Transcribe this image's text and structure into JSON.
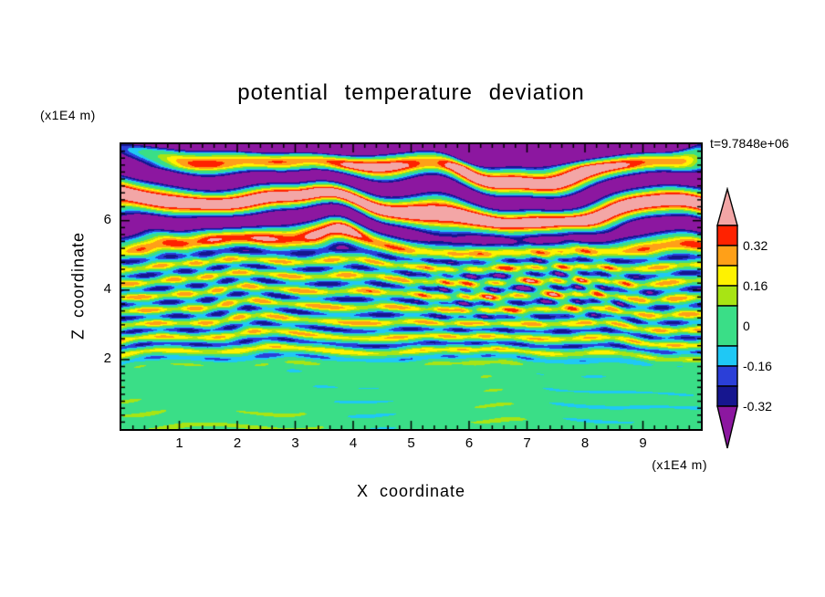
{
  "title": "potential temperature deviation",
  "time_label": "t=9.7848e+06",
  "x_axis": {
    "label": "X coordinate",
    "units": "(x1E4 m)",
    "tick_labels": [
      "1",
      "2",
      "3",
      "4",
      "5",
      "6",
      "7",
      "8",
      "9"
    ]
  },
  "z_axis": {
    "label": "Z coordinate",
    "units": "(x1E4 m)",
    "tick_labels": [
      "2",
      "4",
      "6"
    ]
  },
  "colorbar": {
    "tick_labels": [
      "0.32",
      "0.16",
      "0",
      "-0.16",
      "-0.32"
    ]
  },
  "chart_data": {
    "type": "heatmap",
    "title": "potential temperature deviation",
    "xlabel": "X coordinate",
    "ylabel": "Z coordinate",
    "x_units_label": "(x1E4 m)",
    "y_units_label": "(x1E4 m)",
    "time_annotation": "t=9.7848e+06",
    "xlim": [
      0,
      10
    ],
    "ylim": [
      0,
      8.2
    ],
    "x_major_ticks": [
      1,
      2,
      3,
      4,
      5,
      6,
      7,
      8,
      9
    ],
    "y_major_ticks": [
      2,
      4,
      6
    ],
    "minor_tick_step": 0.2,
    "contour_levels": [
      0.4,
      0.32,
      0.24,
      0.16,
      0.08,
      -0.08,
      -0.16,
      -0.24,
      -0.32
    ],
    "colorbar_labels": [
      0.32,
      0.16,
      0,
      -0.16,
      -0.32
    ],
    "band_colors": [
      "#F3A6A6",
      "#FF2200",
      "#FFA018",
      "#FFF200",
      "#A8E414",
      "#3ADE87",
      "#1FC8F5",
      "#2B3FD8",
      "#16168F",
      "#8C17A0"
    ],
    "field_description": "Layered turbulent potential-temperature-deviation field: near-zero (green) for z<2, fine-scale +/-0.3 striations for 2<z<5 with a speckled patch near x=7,z=4, and broad +/-0.5 pink/purple bands above z=5 with a purple cap at the top boundary."
  }
}
